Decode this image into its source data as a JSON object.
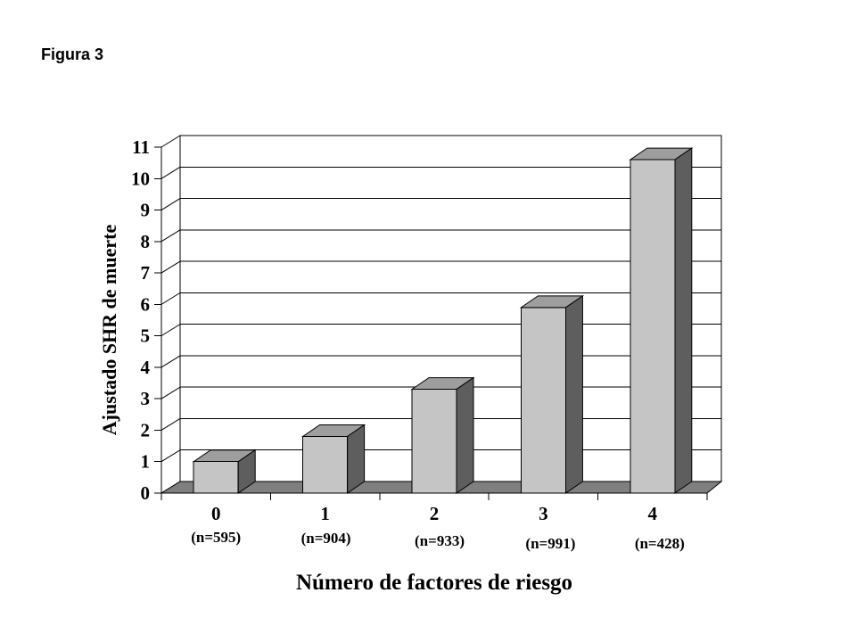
{
  "figure_label": "Figura 3",
  "chart_data": {
    "type": "bar",
    "style": "3d-column",
    "title": "Figura 3",
    "xlabel": "Número de factores de riesgo",
    "ylabel": "Ajustado SHR de muerte",
    "categories": [
      "0",
      "1",
      "2",
      "3",
      "4"
    ],
    "category_sublabels": [
      "(n=595)",
      "(n=904)",
      "(n=933)",
      "(n=991)",
      "(n=428)"
    ],
    "values": [
      1.0,
      1.8,
      3.3,
      5.9,
      10.6
    ],
    "ylim": [
      0,
      11
    ],
    "ytick_step": 1,
    "yticks": [
      "0",
      "1",
      "2",
      "3",
      "4",
      "5",
      "6",
      "7",
      "8",
      "9",
      "10",
      "11"
    ],
    "grid": true,
    "legend": false,
    "colors": {
      "bar_front": "#c5c5c5",
      "bar_top": "#9e9e9e",
      "bar_side": "#5e5e5e",
      "floor": "#7f7f7f",
      "line": "#000000",
      "background": "#ffffff"
    }
  }
}
